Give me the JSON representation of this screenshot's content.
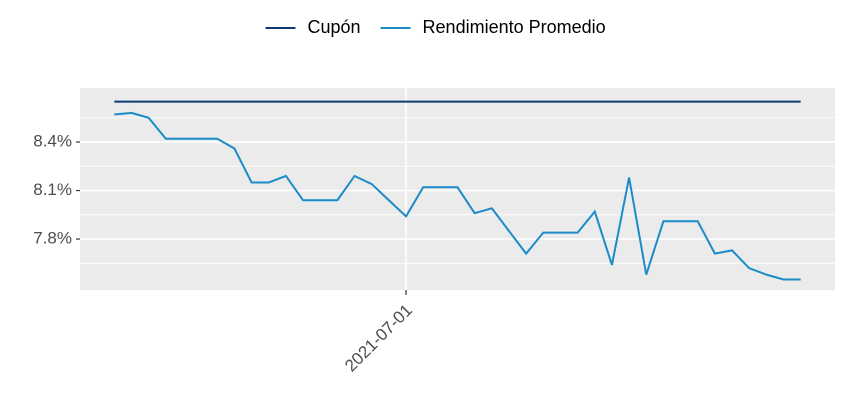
{
  "chart_data": {
    "type": "line",
    "x": [
      "2021-06-14",
      "2021-06-15",
      "2021-06-16",
      "2021-06-17",
      "2021-06-18",
      "2021-06-19",
      "2021-06-20",
      "2021-06-21",
      "2021-06-22",
      "2021-06-23",
      "2021-06-24",
      "2021-06-25",
      "2021-06-26",
      "2021-06-27",
      "2021-06-28",
      "2021-06-29",
      "2021-06-30",
      "2021-07-01",
      "2021-07-02",
      "2021-07-03",
      "2021-07-04",
      "2021-07-05",
      "2021-07-06",
      "2021-07-07",
      "2021-07-08",
      "2021-07-09",
      "2021-07-10",
      "2021-07-11",
      "2021-07-12",
      "2021-07-13",
      "2021-07-14",
      "2021-07-15",
      "2021-07-16",
      "2021-07-17",
      "2021-07-18",
      "2021-07-19",
      "2021-07-20",
      "2021-07-21",
      "2021-07-22",
      "2021-07-23",
      "2021-07-24"
    ],
    "series": [
      {
        "name": "Cupón",
        "color": "#0b3d73",
        "values": [
          8.65,
          8.65,
          8.65,
          8.65,
          8.65,
          8.65,
          8.65,
          8.65,
          8.65,
          8.65,
          8.65,
          8.65,
          8.65,
          8.65,
          8.65,
          8.65,
          8.65,
          8.65,
          8.65,
          8.65,
          8.65,
          8.65,
          8.65,
          8.65,
          8.65,
          8.65,
          8.65,
          8.65,
          8.65,
          8.65,
          8.65,
          8.65,
          8.65,
          8.65,
          8.65,
          8.65,
          8.65,
          8.65,
          8.65,
          8.65,
          8.65
        ]
      },
      {
        "name": "Rendimiento Promedio",
        "color": "#1b8cc8",
        "values": [
          8.57,
          8.58,
          8.55,
          8.42,
          8.42,
          8.42,
          8.42,
          8.36,
          8.15,
          8.15,
          8.19,
          8.04,
          8.04,
          8.04,
          8.19,
          8.14,
          8.04,
          7.94,
          8.12,
          8.12,
          8.12,
          7.96,
          7.99,
          7.85,
          7.71,
          7.84,
          7.84,
          7.84,
          7.97,
          7.64,
          8.18,
          7.58,
          7.91,
          7.91,
          7.91,
          7.71,
          7.73,
          7.62,
          7.58,
          7.55,
          7.55
        ]
      }
    ],
    "xlim": [
      "2021-06-12",
      "2021-07-26"
    ],
    "xticks": [
      "2021-07-01"
    ],
    "ylim": [
      7.485,
      8.734
    ],
    "yticks": [
      {
        "value": 7.8,
        "label": "7.8%"
      },
      {
        "value": 8.1,
        "label": "8.1%"
      },
      {
        "value": 8.4,
        "label": "8.4%"
      }
    ],
    "grid": true,
    "legend": "top"
  }
}
